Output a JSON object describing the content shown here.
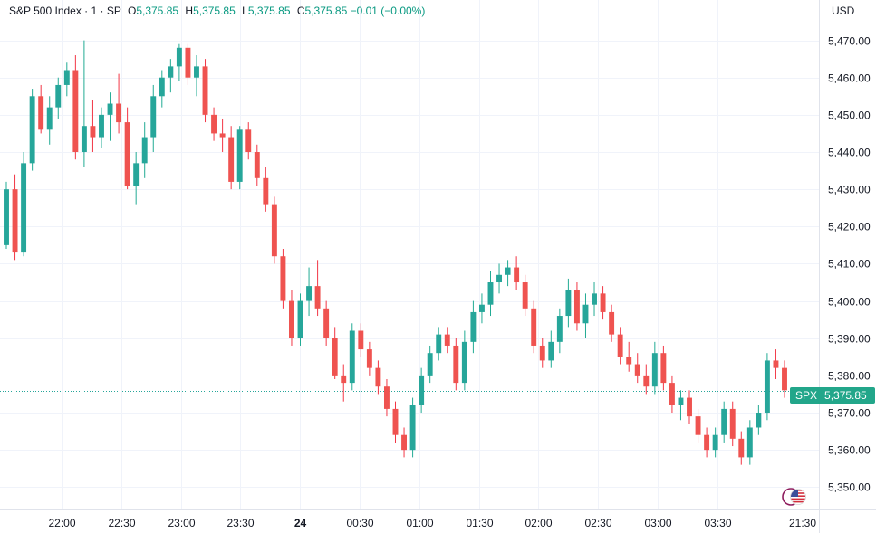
{
  "legend": {
    "symbol": "S&P 500 Index · 1 · SP",
    "open_label": "O",
    "open": "5,375.85",
    "high_label": "H",
    "high": "5,375.85",
    "low_label": "L",
    "low": "5,375.85",
    "close_label": "C",
    "close": "5,375.85",
    "change": "−0.01 (−0.00%)"
  },
  "currency": "USD",
  "price_tag": {
    "symbol": "SPX",
    "value": "5,375.85"
  },
  "colors": {
    "up": "#22ab94",
    "down": "#f23645",
    "up_body": "#26a69a",
    "down_body": "#ef5350",
    "grid": "#f0f3fa",
    "axis_text": "#131722"
  },
  "chart_data": {
    "type": "candlestick",
    "title": "S&P 500 Index · 1 · SP",
    "ylim": [
      5344,
      5475
    ],
    "y_ticks": [
      5350,
      5360,
      5370,
      5380,
      5390,
      5400,
      5410,
      5420,
      5430,
      5440,
      5450,
      5460,
      5470
    ],
    "y_tick_labels": [
      "5,350.00",
      "5,360.00",
      "5,370.00",
      "5,380.00",
      "5,390.00",
      "5,400.00",
      "5,410.00",
      "5,420.00",
      "5,430.00",
      "5,440.00",
      "5,450.00",
      "5,460.00",
      "5,470.00"
    ],
    "x_ticks": [
      "22:00",
      "22:30",
      "23:00",
      "23:30",
      "24",
      "00:30",
      "01:00",
      "01:30",
      "02:00",
      "02:30",
      "03:00",
      "03:30",
      "21:30"
    ],
    "x_tick_bold": [
      false,
      false,
      false,
      false,
      true,
      false,
      false,
      false,
      false,
      false,
      false,
      false,
      false
    ],
    "last_price": 5375.85,
    "series": [
      {
        "values": [
          [
            5415,
            5432,
            5414,
            5430
          ],
          [
            5430,
            5434,
            5411,
            5413
          ],
          [
            5413,
            5440,
            5412,
            5437
          ],
          [
            5437,
            5457,
            5435,
            5455
          ],
          [
            5455,
            5458,
            5445,
            5446
          ],
          [
            5446,
            5455,
            5442,
            5452
          ],
          [
            5452,
            5460,
            5449,
            5458
          ],
          [
            5458,
            5464,
            5455,
            5462
          ],
          [
            5462,
            5466,
            5438,
            5440
          ],
          [
            5440,
            5470,
            5436,
            5447
          ],
          [
            5447,
            5454,
            5440,
            5444
          ],
          [
            5444,
            5452,
            5441,
            5450
          ],
          [
            5450,
            5456,
            5443,
            5453
          ],
          [
            5453,
            5461,
            5445,
            5448
          ],
          [
            5448,
            5452,
            5430,
            5431
          ],
          [
            5431,
            5440,
            5426,
            5437
          ],
          [
            5437,
            5448,
            5433,
            5444
          ],
          [
            5444,
            5458,
            5440,
            5455
          ],
          [
            5455,
            5462,
            5452,
            5460
          ],
          [
            5460,
            5465,
            5456,
            5463
          ],
          [
            5463,
            5469,
            5459,
            5468
          ],
          [
            5468,
            5469,
            5458,
            5460
          ],
          [
            5460,
            5466,
            5455,
            5463
          ],
          [
            5463,
            5465,
            5448,
            5450
          ],
          [
            5450,
            5452,
            5443,
            5445
          ],
          [
            5445,
            5449,
            5440,
            5444
          ],
          [
            5444,
            5447,
            5430,
            5432
          ],
          [
            5432,
            5447,
            5430,
            5446
          ],
          [
            5446,
            5448,
            5438,
            5440
          ],
          [
            5440,
            5442,
            5431,
            5433
          ],
          [
            5433,
            5436,
            5424,
            5426
          ],
          [
            5426,
            5428,
            5410,
            5412
          ],
          [
            5412,
            5414,
            5398,
            5400
          ],
          [
            5400,
            5403,
            5388,
            5390
          ],
          [
            5390,
            5402,
            5388,
            5400
          ],
          [
            5400,
            5409,
            5396,
            5404
          ],
          [
            5404,
            5411,
            5396,
            5398
          ],
          [
            5398,
            5400,
            5388,
            5390
          ],
          [
            5390,
            5393,
            5379,
            5380
          ],
          [
            5380,
            5383,
            5373,
            5378
          ],
          [
            5378,
            5394,
            5376,
            5392
          ],
          [
            5392,
            5394,
            5385,
            5387
          ],
          [
            5387,
            5389,
            5380,
            5382
          ],
          [
            5382,
            5384,
            5375,
            5377
          ],
          [
            5377,
            5379,
            5369,
            5371
          ],
          [
            5371,
            5373,
            5362,
            5364
          ],
          [
            5364,
            5366,
            5358,
            5360
          ],
          [
            5360,
            5374,
            5358,
            5372
          ],
          [
            5372,
            5382,
            5370,
            5380
          ],
          [
            5380,
            5388,
            5378,
            5386
          ],
          [
            5386,
            5393,
            5384,
            5391
          ],
          [
            5391,
            5393,
            5386,
            5388
          ],
          [
            5388,
            5390,
            5376,
            5378
          ],
          [
            5378,
            5392,
            5376,
            5389
          ],
          [
            5389,
            5400,
            5386,
            5397
          ],
          [
            5397,
            5402,
            5394,
            5399
          ],
          [
            5399,
            5408,
            5396,
            5405
          ],
          [
            5405,
            5410,
            5402,
            5407
          ],
          [
            5407,
            5411,
            5404,
            5409
          ],
          [
            5409,
            5412,
            5403,
            5405
          ],
          [
            5405,
            5407,
            5396,
            5398
          ],
          [
            5398,
            5400,
            5386,
            5388
          ],
          [
            5388,
            5390,
            5382,
            5384
          ],
          [
            5384,
            5392,
            5382,
            5389
          ],
          [
            5389,
            5398,
            5386,
            5396
          ],
          [
            5396,
            5406,
            5393,
            5403
          ],
          [
            5403,
            5405,
            5392,
            5394
          ],
          [
            5394,
            5402,
            5390,
            5399
          ],
          [
            5399,
            5405,
            5396,
            5402
          ],
          [
            5402,
            5404,
            5395,
            5397
          ],
          [
            5397,
            5399,
            5389,
            5391
          ],
          [
            5391,
            5393,
            5383,
            5385
          ],
          [
            5385,
            5389,
            5381,
            5383
          ],
          [
            5383,
            5386,
            5378,
            5380
          ],
          [
            5380,
            5383,
            5375,
            5377
          ],
          [
            5377,
            5389,
            5375,
            5386
          ],
          [
            5386,
            5388,
            5376,
            5378
          ],
          [
            5378,
            5380,
            5370,
            5372
          ],
          [
            5372,
            5376,
            5368,
            5374
          ],
          [
            5374,
            5376,
            5367,
            5369
          ],
          [
            5369,
            5371,
            5362,
            5364
          ],
          [
            5364,
            5366,
            5358,
            5360
          ],
          [
            5360,
            5366,
            5358,
            5364
          ],
          [
            5364,
            5373,
            5362,
            5371
          ],
          [
            5371,
            5373,
            5361,
            5363
          ],
          [
            5363,
            5365,
            5356,
            5358
          ],
          [
            5358,
            5368,
            5356,
            5366
          ],
          [
            5366,
            5372,
            5364,
            5370
          ],
          [
            5370,
            5386,
            5368,
            5384
          ],
          [
            5384,
            5387,
            5379,
            5382
          ],
          [
            5382,
            5384,
            5374,
            5376
          ]
        ]
      }
    ]
  }
}
